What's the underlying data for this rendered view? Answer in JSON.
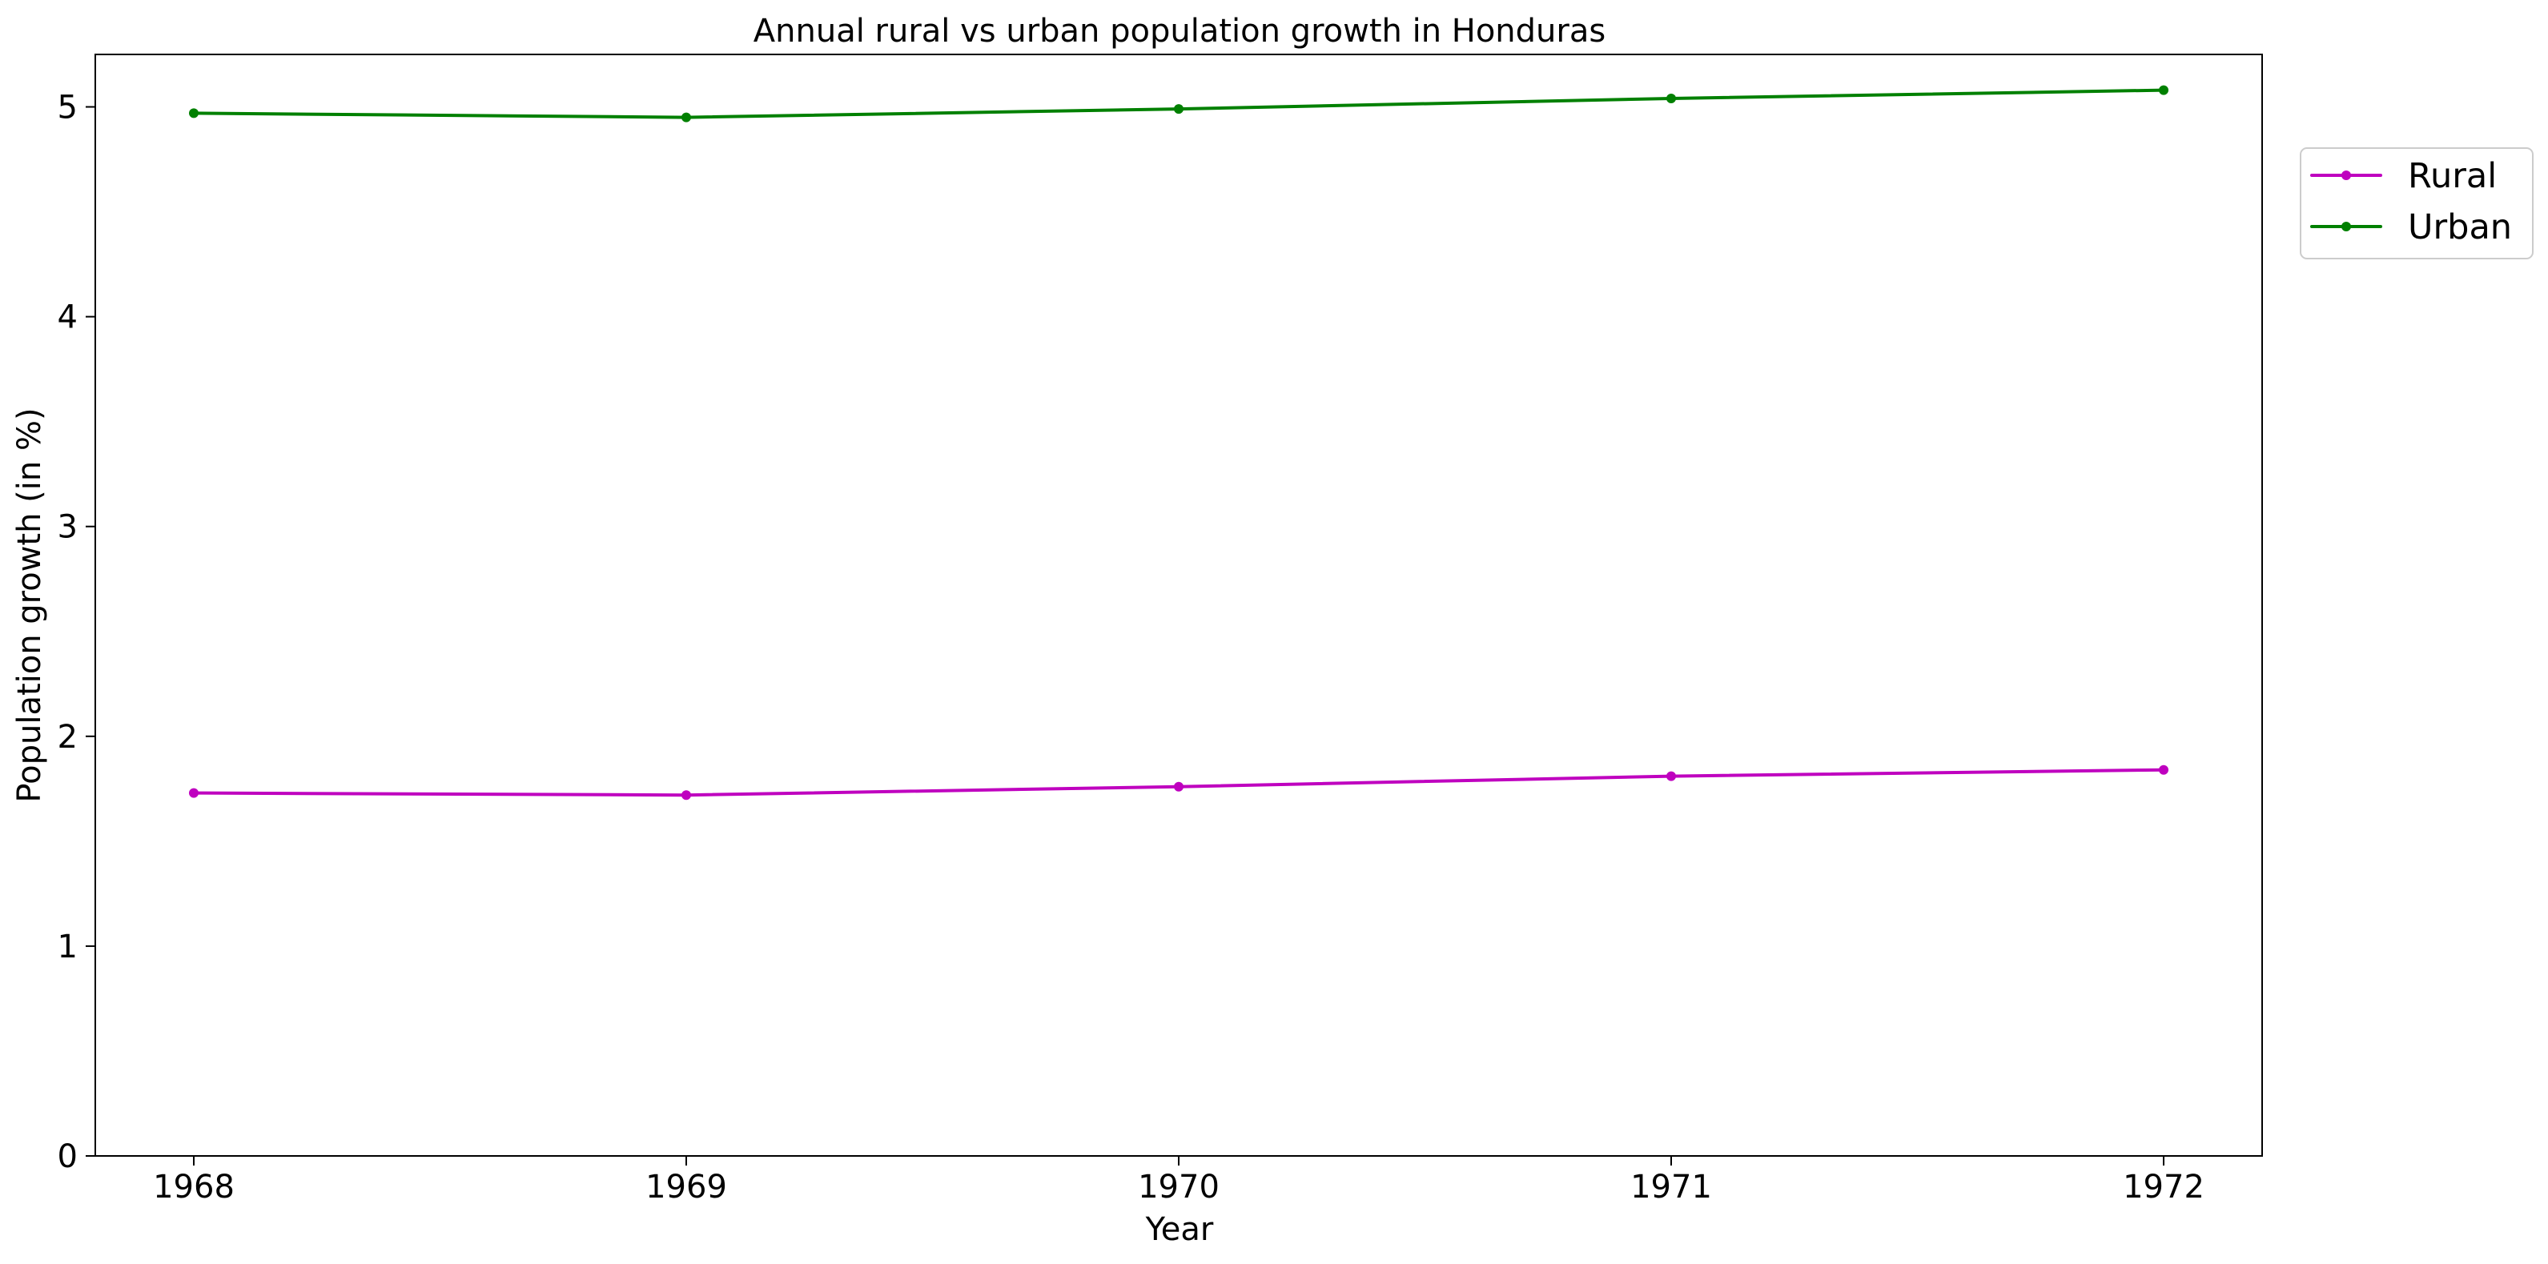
{
  "chart_data": {
    "type": "line",
    "title": "Annual rural vs urban population growth in Honduras",
    "xlabel": "Year",
    "ylabel": "Population growth (in %)",
    "x": [
      "1968",
      "1969",
      "1970",
      "1971",
      "1972"
    ],
    "xlim": [
      1967.8,
      1972.2
    ],
    "ylim": [
      0,
      5.25
    ],
    "y_ticks": [
      "0",
      "1",
      "2",
      "3",
      "4",
      "5"
    ],
    "grid": false,
    "legend_position": "upper right, outside plot",
    "series": [
      {
        "name": "Rural",
        "color": "#bf00bf",
        "values": [
          1.73,
          1.72,
          1.76,
          1.81,
          1.84
        ]
      },
      {
        "name": "Urban",
        "color": "#008000",
        "values": [
          4.97,
          4.95,
          4.99,
          5.04,
          5.08
        ]
      }
    ]
  }
}
